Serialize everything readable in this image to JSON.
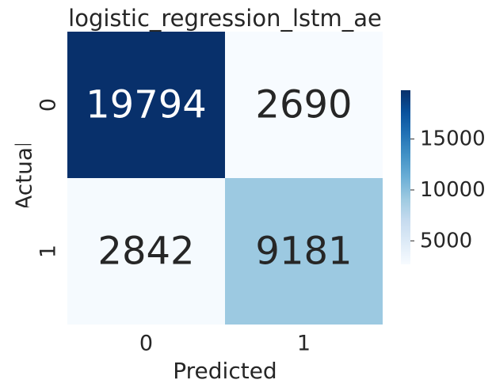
{
  "chart_data": {
    "type": "heatmap",
    "title": "logistic_regression_lstm_ae",
    "xlabel": "Predicted",
    "ylabel": "Actual",
    "x_tick_labels": [
      "0",
      "1"
    ],
    "y_tick_labels": [
      "0",
      "1"
    ],
    "values": [
      [
        19794,
        2690
      ],
      [
        2842,
        9181
      ]
    ],
    "annotations": [
      [
        "19794",
        "2690"
      ],
      [
        "2842",
        "9181"
      ]
    ],
    "colormap": "Blues",
    "colorbar": {
      "range": [
        2690,
        19794
      ],
      "ticks": [
        5000,
        10000,
        15000
      ],
      "tick_labels": [
        "5000",
        "10000",
        "15000"
      ]
    },
    "grid": false
  }
}
